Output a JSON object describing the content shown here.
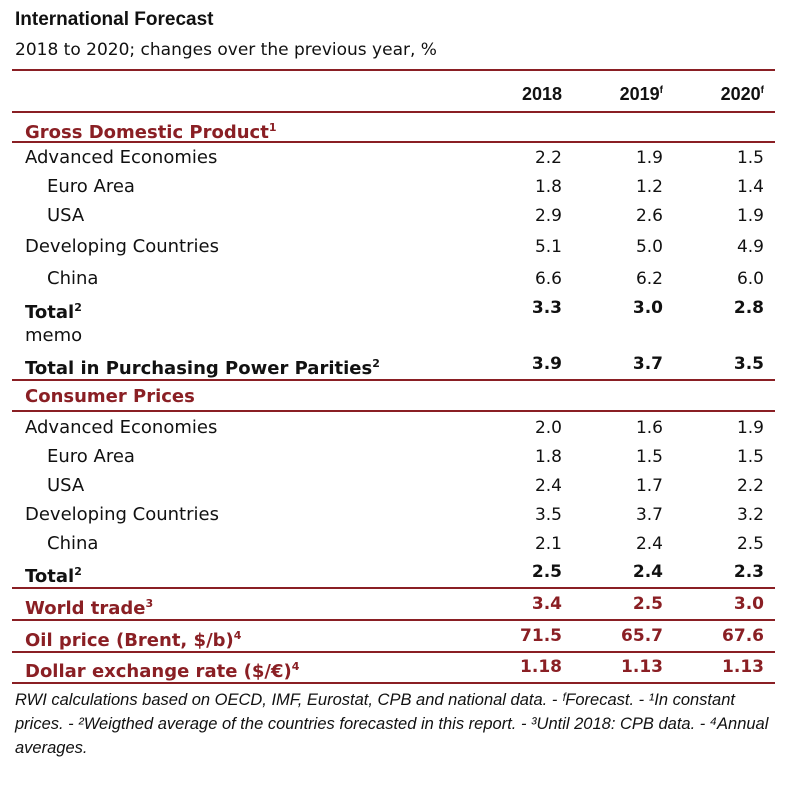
{
  "title": "International Forecast",
  "subtitle": "2018 to 2020; changes over the previous year, %",
  "columns": [
    "2018",
    "2019",
    "2020"
  ],
  "column_superscripts": [
    "",
    "f",
    "f"
  ],
  "gdp": {
    "heading": "Gross Domestic Product",
    "heading_sup": "1",
    "rows": [
      {
        "label": "Advanced Economies",
        "values": [
          "2.2",
          "1.9",
          "1.5"
        ]
      },
      {
        "label": "Euro Area",
        "values": [
          "1.8",
          "1.2",
          "1.4"
        ]
      },
      {
        "label": "USA",
        "values": [
          "2.9",
          "2.6",
          "1.9"
        ]
      },
      {
        "label": "Developing Countries",
        "values": [
          "5.1",
          "5.0",
          "4.9"
        ]
      },
      {
        "label": "China",
        "values": [
          "6.6",
          "6.2",
          "6.0"
        ]
      }
    ],
    "total": {
      "label": "Total",
      "sup": "2",
      "values": [
        "3.3",
        "3.0",
        "2.8"
      ]
    },
    "memo": "memo",
    "ppp": {
      "label": "Total in Purchasing Power Parities",
      "sup": "2",
      "values": [
        "3.9",
        "3.7",
        "3.5"
      ]
    }
  },
  "cpi": {
    "heading": "Consumer Prices",
    "rows": [
      {
        "label": "Advanced Economies",
        "values": [
          "2.0",
          "1.6",
          "1.9"
        ]
      },
      {
        "label": "Euro Area",
        "values": [
          "1.8",
          "1.5",
          "1.5"
        ]
      },
      {
        "label": "USA",
        "values": [
          "2.4",
          "1.7",
          "2.2"
        ]
      },
      {
        "label": "Developing Countries",
        "values": [
          "3.5",
          "3.7",
          "3.2"
        ]
      },
      {
        "label": "China",
        "values": [
          "2.1",
          "2.4",
          "2.5"
        ]
      }
    ],
    "total": {
      "label": "Total",
      "sup": "2",
      "values": [
        "2.5",
        "2.4",
        "2.3"
      ]
    }
  },
  "world_trade": {
    "label": "World trade",
    "sup": "3",
    "values": [
      "3.4",
      "2.5",
      "3.0"
    ]
  },
  "oil": {
    "label": "Oil price (Brent, $/b)",
    "sup": "4",
    "values": [
      "71.5",
      "65.7",
      "67.6"
    ]
  },
  "fx": {
    "label": "Dollar exchange rate ($/€)",
    "sup": "4",
    "values": [
      "1.18",
      "1.13",
      "1.13"
    ]
  },
  "footnote": "RWI calculations based on OECD, IMF, Eurostat, CPB and national data. - ᶠForecast. - ¹In constant prices. - ²Weigthed average of the countries forecasted in this report. - ³Until 2018: CPB data. - ⁴Annual averages.",
  "colors": {
    "accent": "#8a1f24",
    "text": "#111111"
  }
}
